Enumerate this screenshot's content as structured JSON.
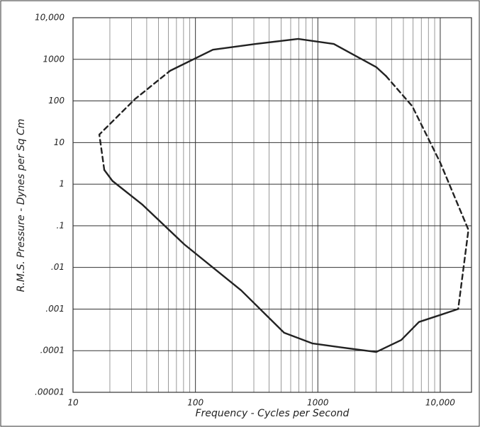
{
  "chart_data": {
    "type": "line",
    "x_label": "Frequency - Cycles per Second",
    "y_label": "R.M.S. Pressure - Dynes per Sq Cm",
    "xscale": "log",
    "yscale": "log",
    "grid": true,
    "color": "#222",
    "xlim": [
      10,
      18000
    ],
    "xticks": [
      10,
      100,
      1000,
      {
        "value": 10000,
        "label": "10,000"
      }
    ],
    "ylim": [
      1e-05,
      10000
    ],
    "yticks": [
      {
        "value": 10000,
        "label": "10,000"
      },
      1000,
      100,
      10,
      1,
      {
        "value": 0.1,
        "label": ".1"
      },
      {
        "value": 0.01,
        "label": ".01"
      },
      {
        "value": 0.001,
        "label": ".001"
      },
      {
        "value": 0.0001,
        "label": ".0001"
      },
      {
        "value": 1e-05,
        "label": ".00001"
      }
    ],
    "series": [
      {
        "dashed": true,
        "x": [
          18,
          16.4,
          32,
          62
        ],
        "values": [
          2.2,
          15.6,
          110,
          530
        ]
      },
      {
        "dashed": false,
        "x": [
          62,
          139,
          310,
          690,
          1350,
          3000,
          3600
        ],
        "values": [
          530,
          1700,
          2340,
          3100,
          2340,
          650,
          400
        ]
      },
      {
        "dashed": true,
        "x": [
          3600,
          5900,
          10000,
          17000,
          14000
        ],
        "values": [
          400,
          75,
          3.3,
          0.08,
          0.001
        ]
      },
      {
        "dashed": false,
        "x": [
          14000,
          10000,
          6700,
          4800,
          3000,
          1550,
          900,
          530,
          237,
          81,
          37,
          21,
          18
        ],
        "values": [
          0.001,
          0.00072,
          0.00049,
          0.00018,
          9.3e-05,
          0.00012,
          0.00015,
          0.00027,
          0.0028,
          0.036,
          0.32,
          1.2,
          2.2
        ]
      }
    ]
  }
}
